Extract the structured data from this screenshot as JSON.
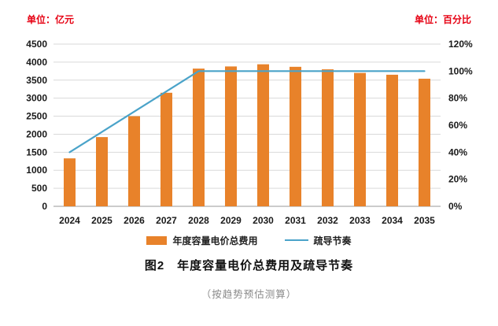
{
  "chart": {
    "left_unit": "单位：亿元",
    "right_unit": "单位：百分比",
    "legend": [
      {
        "label": "年度容量电价总费用",
        "type": "bar"
      },
      {
        "label": "疏导节奏",
        "type": "line"
      }
    ],
    "title": "图2　年度容量电价总费用及疏导节奏",
    "subtitle": "（按趋势预估测算）"
  },
  "colors": {
    "bar": "#E8822A",
    "line": "#4AA3C9",
    "unit_text": "#E60012",
    "grid": "#D9D9D9",
    "axis_line": "#9A9A9A",
    "tick_text": "#1A1A1A",
    "subtitle_text": "#8A8A8A"
  },
  "chart_data": {
    "type": "bar",
    "subtype": "combo-bar-line",
    "categories": [
      "2024",
      "2025",
      "2026",
      "2027",
      "2028",
      "2029",
      "2030",
      "2031",
      "2032",
      "2033",
      "2034",
      "2035"
    ],
    "series": [
      {
        "name": "年度容量电价总费用",
        "type": "bar",
        "axis": "left",
        "values": [
          1330,
          1920,
          2500,
          3150,
          3820,
          3880,
          3940,
          3870,
          3800,
          3700,
          3650,
          3540
        ]
      },
      {
        "name": "疏导节奏",
        "type": "line",
        "axis": "right",
        "values": [
          40,
          55,
          70,
          85,
          100,
          100,
          100,
          100,
          100,
          100,
          100,
          100
        ]
      }
    ],
    "left_axis": {
      "label": "单位：亿元",
      "min": 0,
      "max": 4500,
      "step": 500
    },
    "right_axis": {
      "label": "单位：百分比",
      "min": 0,
      "max": 120,
      "step": 20,
      "suffix": "%"
    },
    "grid": true,
    "legend_position": "bottom",
    "title": "图2　年度容量电价总费用及疏导节奏",
    "annotation": "（按趋势预估测算）"
  }
}
